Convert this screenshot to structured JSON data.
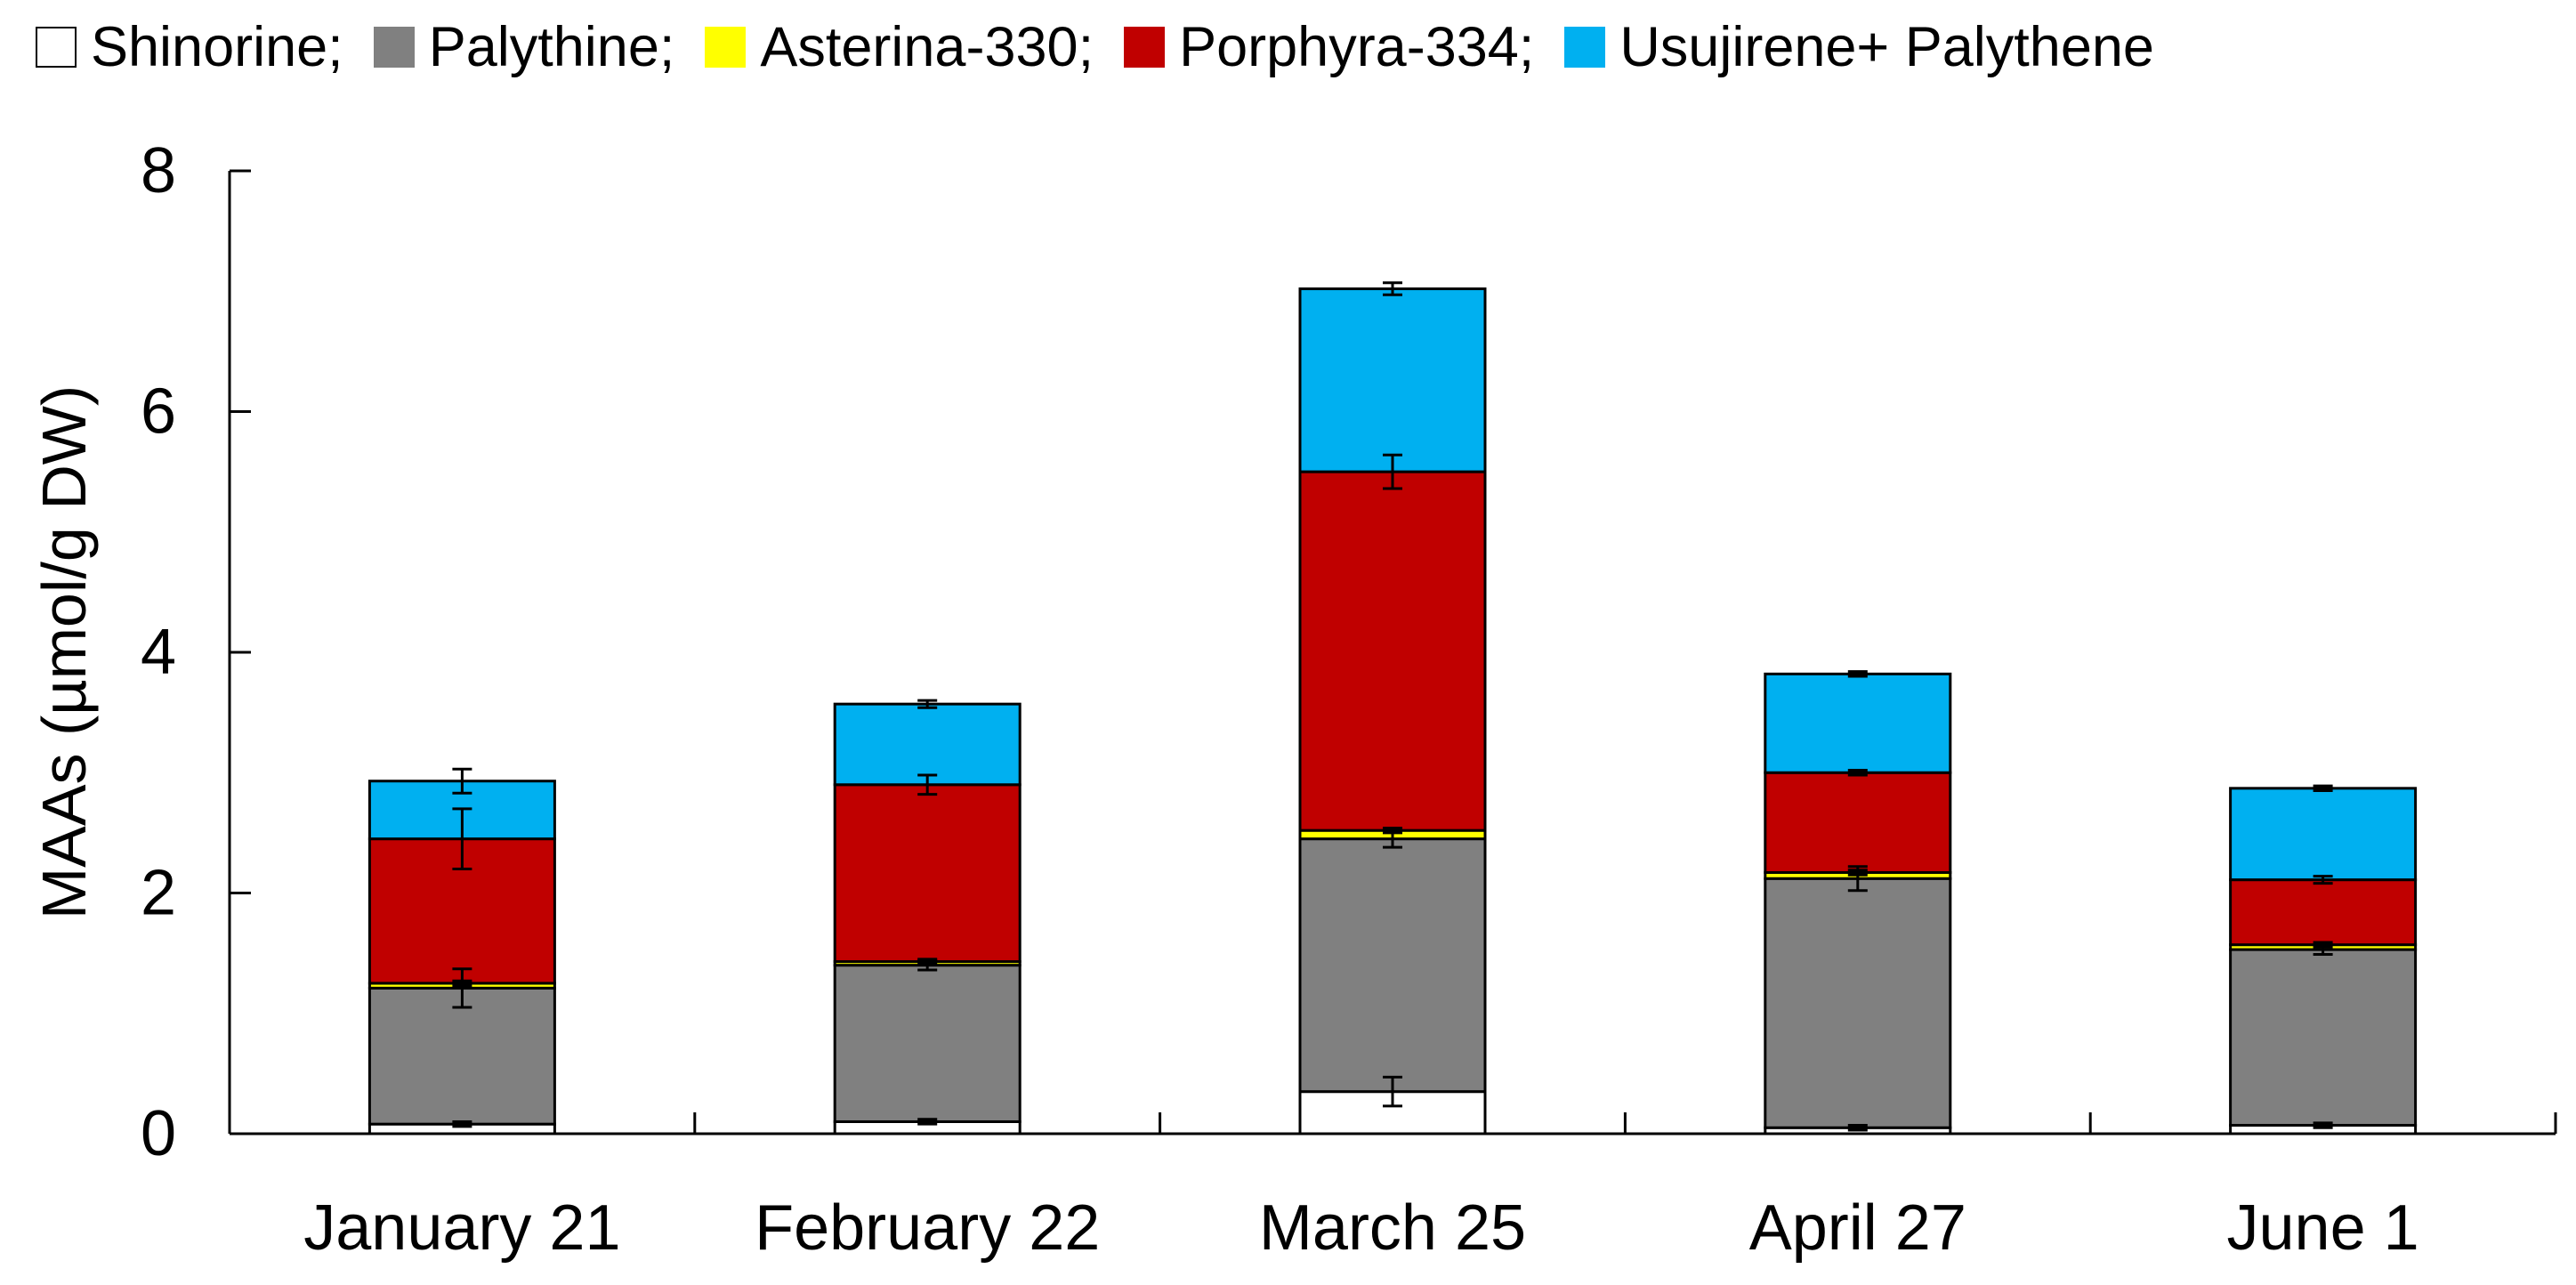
{
  "chart_data": {
    "type": "bar",
    "stacked": true,
    "title": "",
    "xlabel": "",
    "ylabel": "MAAs (µmol/g DW)",
    "ylim": [
      0,
      8
    ],
    "yticks": [
      0,
      2,
      4,
      6,
      8
    ],
    "grid": false,
    "legend_position": "top",
    "categories": [
      "January 21",
      "February 22",
      "March 25",
      "April 27",
      "June 1"
    ],
    "series": [
      {
        "name": "Shinorine;",
        "color": "#ffffff",
        "values": [
          0.08,
          0.1,
          0.35,
          0.05,
          0.07
        ],
        "errors": [
          0.02,
          0.02,
          0.12,
          0.02,
          0.02
        ]
      },
      {
        "name": "Palythine;",
        "color": "#808080",
        "values": [
          1.13,
          1.3,
          2.1,
          2.07,
          1.46
        ],
        "errors": [
          0.16,
          0.04,
          0.07,
          0.1,
          0.04
        ]
      },
      {
        "name": "Asterina-330;",
        "color": "#ffff00",
        "values": [
          0.04,
          0.03,
          0.07,
          0.05,
          0.04
        ],
        "errors": [
          0.02,
          0.02,
          0.02,
          0.02,
          0.02
        ]
      },
      {
        "name": "Porphyra-334;",
        "color": "#c00000",
        "values": [
          1.2,
          1.47,
          2.98,
          0.83,
          0.54
        ],
        "errors": [
          0.25,
          0.08,
          0.14,
          0.02,
          0.03
        ]
      },
      {
        "name": "Usujirene+ Palythene",
        "color": "#00b0f0",
        "values": [
          0.48,
          0.67,
          1.52,
          0.82,
          0.76
        ],
        "errors": [
          0.1,
          0.03,
          0.05,
          0.02,
          0.02
        ]
      }
    ]
  }
}
